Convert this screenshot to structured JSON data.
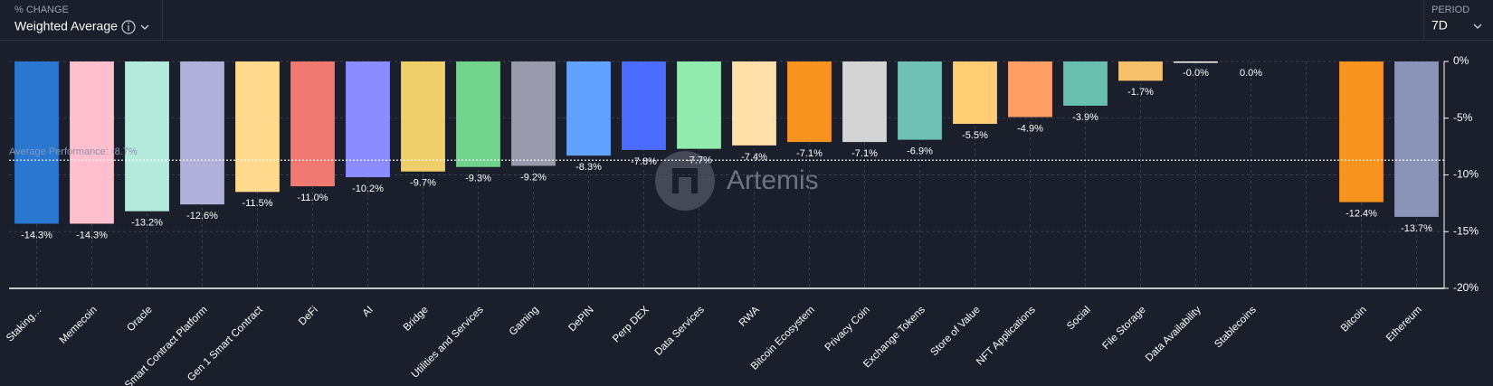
{
  "header": {
    "metric_caption": "% CHANGE",
    "metric": "Weighted Average",
    "period_caption": "PERIOD",
    "period": "7D"
  },
  "watermark": "Artemis",
  "chart_data": {
    "type": "bar",
    "categories": [
      "Staking…",
      "Memecoin",
      "Oracle",
      "Smart Contract Platform",
      "Gen 1 Smart Contract",
      "DeFi",
      "AI",
      "Bridge",
      "Utilities and Services",
      "Gaming",
      "DePIN",
      "Perp DEX",
      "Data Services",
      "RWA",
      "Bitcoin Ecosystem",
      "Privacy Coin",
      "Exchange Tokens",
      "Store of Value",
      "NFT Applications",
      "Social",
      "File Storage",
      "Data Availability",
      "Stablecoins",
      null,
      "Bitcoin",
      "Ethereum"
    ],
    "values": [
      -14.3,
      -14.3,
      -13.2,
      -12.6,
      -11.5,
      -11.0,
      -10.2,
      -9.7,
      -9.3,
      -9.2,
      -8.3,
      -7.8,
      -7.7,
      -7.4,
      -7.1,
      -7.1,
      -6.9,
      -5.5,
      -4.9,
      -3.9,
      -1.7,
      -0.0,
      0.0,
      null,
      -12.4,
      -13.7
    ],
    "value_labels": [
      "-14.3%",
      "-14.3%",
      "-13.2%",
      "-12.6%",
      "-11.5%",
      "-11.0%",
      "-10.2%",
      "-9.7%",
      "-9.3%",
      "-9.2%",
      "-8.3%",
      "-7.8%",
      "-7.7%",
      "-7.4%",
      "-7.1%",
      "-7.1%",
      "-6.9%",
      "-5.5%",
      "-4.9%",
      "-3.9%",
      "-1.7%",
      "-0.0%",
      "0.0%",
      null,
      "-12.4%",
      "-13.7%"
    ],
    "colors": [
      "#2a77d0",
      "#ffbfcc",
      "#b3ead9",
      "#b0b0da",
      "#ffd98c",
      "#f07a72",
      "#8a8cff",
      "#eecf6a",
      "#72d48c",
      "#9a9aac",
      "#62a2ff",
      "#4b6cff",
      "#93eaae",
      "#ffe0a8",
      "#f7931e",
      "#d4d4d4",
      "#6fc0b5",
      "#ffcd73",
      "#ff9e64",
      "#68bfad",
      "#f5c26b",
      "#ffffff",
      "#cccccc",
      null,
      "#f7931e",
      "#8a93b8"
    ],
    "ylim": [
      -20,
      0
    ],
    "yticks": [
      {
        "value": 0,
        "label": "0%"
      },
      {
        "value": -5,
        "label": "-5%"
      },
      {
        "value": -10,
        "label": "-10%"
      },
      {
        "value": -15,
        "label": "-15%"
      },
      {
        "value": -20,
        "label": "-20%"
      }
    ],
    "grid": true,
    "average": {
      "value": -8.7,
      "label": "Average Performance: -8.7%"
    }
  }
}
